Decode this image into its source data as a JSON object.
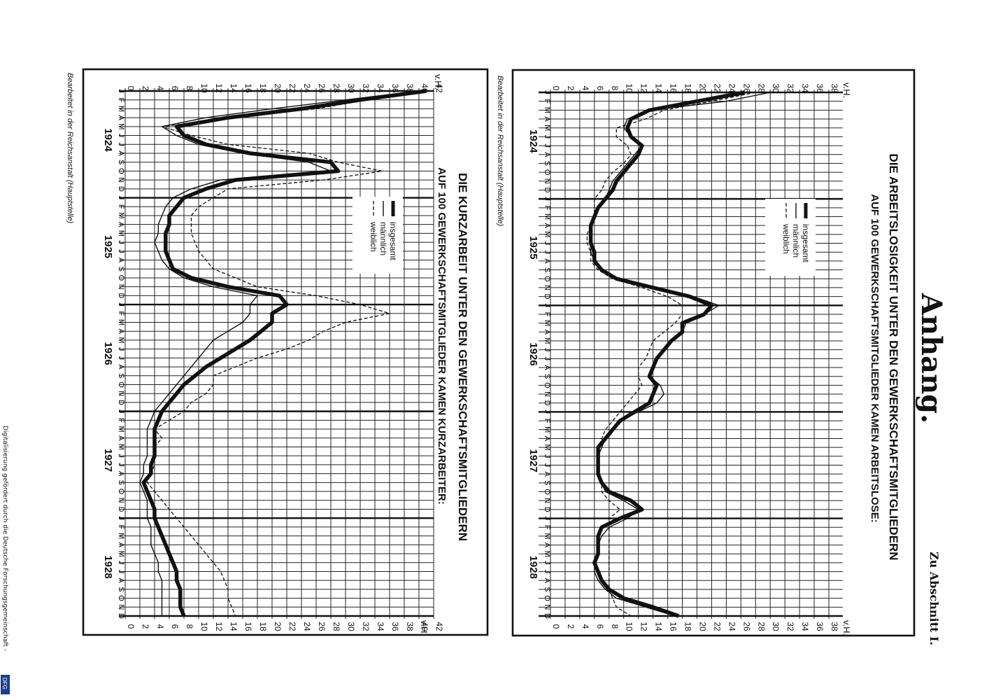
{
  "page": {
    "heading": "Anhang.",
    "section_ref": "Zu Abschnitt I.",
    "footer": "Digitalisierung gefördert durch die Deutsche Forschungsgemeinschaft -",
    "badge": "DFG"
  },
  "chart_data": [
    {
      "type": "line",
      "title": "DIE ARBEITSLOSIGKEIT UNTER DEN GEWERKSCHAFTSMITGLIEDERN",
      "subtitle": "AUF 100 GEWERKSCHAFTSMITGLIEDER KAMEN ARBEITSLOSE:",
      "ylabel": "v.H.",
      "ylim": [
        0,
        38
      ],
      "yticks": [
        0,
        2,
        4,
        6,
        8,
        10,
        12,
        14,
        16,
        18,
        20,
        22,
        24,
        26,
        28,
        30,
        32,
        34,
        36,
        38
      ],
      "month_labels": [
        "J",
        "F",
        "M",
        "A",
        "M",
        "J",
        "J",
        "A",
        "S",
        "O",
        "N",
        "D"
      ],
      "year_labels": [
        "1924",
        "1925",
        "1926",
        "1927",
        "1928"
      ],
      "credit": "Bearbeitet in der Reichsanstalt (Hauptstelle)",
      "series": [
        {
          "name": "insgesamt",
          "style": "thick",
          "values": [
            26.5,
            20,
            13.5,
            11,
            10.5,
            11,
            12.5,
            12,
            11,
            10,
            9,
            8.5,
            7.5,
            6.5,
            6,
            5.5,
            5.5,
            5.5,
            6,
            6,
            7,
            9,
            14,
            19,
            22,
            21,
            18,
            18,
            16.5,
            15.5,
            14.5,
            14,
            13.5,
            14.5,
            14,
            13.5,
            11.5,
            9.5,
            8.5,
            7.5,
            6.5,
            6.5,
            6.5,
            6.5,
            7,
            8,
            11,
            12.5,
            9.5,
            7,
            6.5,
            6.5,
            6.5,
            6,
            6.5,
            7,
            8,
            10,
            14,
            17.5
          ]
        },
        {
          "name": "männlich",
          "style": "thin",
          "values": [
            30,
            24,
            13.5,
            10.5,
            10,
            11,
            12.5,
            11.5,
            10.5,
            9.5,
            8.5,
            8,
            7.5,
            6.5,
            6,
            5.5,
            5.5,
            5.5,
            5.5,
            6,
            7,
            9,
            14,
            19.5,
            23,
            21,
            18.5,
            18,
            16.5,
            15.5,
            14.5,
            14,
            13.5,
            15,
            15.5,
            14.5,
            12,
            9.5,
            8.5,
            7.5,
            7,
            6.5,
            6.5,
            6.5,
            7,
            7.5,
            10,
            12,
            10.5,
            8,
            7,
            6.5,
            6.5,
            6,
            6,
            6.5,
            7.5,
            9,
            13,
            17
          ]
        },
        {
          "name": "weiblich",
          "style": "dashed",
          "values": [
            28,
            22,
            15.5,
            13,
            9,
            9,
            10.5,
            11,
            10,
            8.5,
            7.5,
            7,
            6,
            6,
            6,
            5.5,
            5,
            5,
            5.5,
            5.5,
            6.5,
            8.5,
            12.5,
            16,
            18,
            18,
            17,
            15.5,
            14,
            13.5,
            13,
            12,
            12,
            12.5,
            11.5,
            10.5,
            9.5,
            8.5,
            7.5,
            7,
            6.5,
            6.5,
            6.5,
            6.5,
            7,
            7,
            8,
            9.5,
            8,
            8,
            8,
            8,
            8,
            8,
            8,
            8,
            8,
            8.5,
            9,
            11
          ]
        }
      ]
    },
    {
      "type": "line",
      "title": "DIE KURZARBEIT UNTER DEN GEWERKSCHAFTSMITGLIEDERN",
      "subtitle": "AUF 100 GEWERKSCHAFTSMITGLIEDER KAMEN KURZARBEITER:",
      "ylabel": "v.H.",
      "ylim": [
        0,
        42
      ],
      "yticks": [
        0,
        2,
        4,
        6,
        8,
        10,
        12,
        14,
        16,
        18,
        20,
        22,
        24,
        26,
        28,
        30,
        32,
        34,
        36,
        38,
        40,
        42
      ],
      "month_labels": [
        "J",
        "F",
        "M",
        "A",
        "M",
        "J",
        "J",
        "A",
        "S",
        "O",
        "N",
        "D"
      ],
      "year_labels": [
        "1924",
        "1925",
        "1926",
        "1927",
        "1928"
      ],
      "credit": "Bearbeitet in der Reichsanstalt (Hauptstelle)",
      "series": [
        {
          "name": "insgesamt",
          "style": "thick",
          "values": [
            41,
            32,
            24,
            14,
            7,
            8,
            11,
            17,
            28,
            29,
            15,
            11,
            8,
            7,
            6,
            6,
            5.5,
            5.5,
            5.5,
            6,
            6.5,
            9,
            14,
            21,
            22,
            20,
            20,
            18.5,
            17,
            15,
            13,
            11,
            9.5,
            8,
            7,
            6,
            5,
            4.5,
            4,
            4,
            4,
            4,
            3.5,
            3.5,
            2.5,
            3,
            3.5,
            4,
            4,
            4.5,
            5,
            5.5,
            6,
            6.5,
            7,
            7,
            7.5,
            7.5,
            7.5,
            8
          ]
        },
        {
          "name": "männlich",
          "style": "thin",
          "values": [
            40,
            30,
            20,
            11,
            5,
            7,
            10,
            16,
            25,
            28,
            13,
            9,
            6.5,
            5.5,
            5,
            4.5,
            4.5,
            4,
            4.5,
            5,
            6,
            8,
            12,
            18,
            17,
            17,
            16,
            14,
            12,
            11,
            10,
            9,
            8,
            7,
            6,
            5,
            4,
            3.5,
            3,
            3,
            3,
            3,
            2.5,
            2.5,
            2,
            2.5,
            3,
            3,
            3,
            3.5,
            3.5,
            3.5,
            4,
            4.5,
            4.5,
            5,
            5,
            5,
            5,
            5
          ]
        },
        {
          "name": "weiblich",
          "style": "dashed",
          "values": [
            40,
            33,
            26,
            15,
            5,
            9,
            14,
            25,
            29,
            35,
            27,
            14,
            12,
            10,
            9,
            9,
            9,
            9.5,
            10,
            11,
            12,
            15,
            18,
            26,
            32,
            36,
            30,
            27,
            25,
            22,
            18,
            15,
            12,
            12,
            11,
            9,
            8,
            6,
            4,
            5,
            4,
            4,
            4,
            3.5,
            3,
            4,
            5,
            6,
            7,
            8,
            9,
            10,
            11,
            12,
            13,
            13.5,
            14,
            14,
            14.5,
            15
          ]
        }
      ]
    }
  ]
}
